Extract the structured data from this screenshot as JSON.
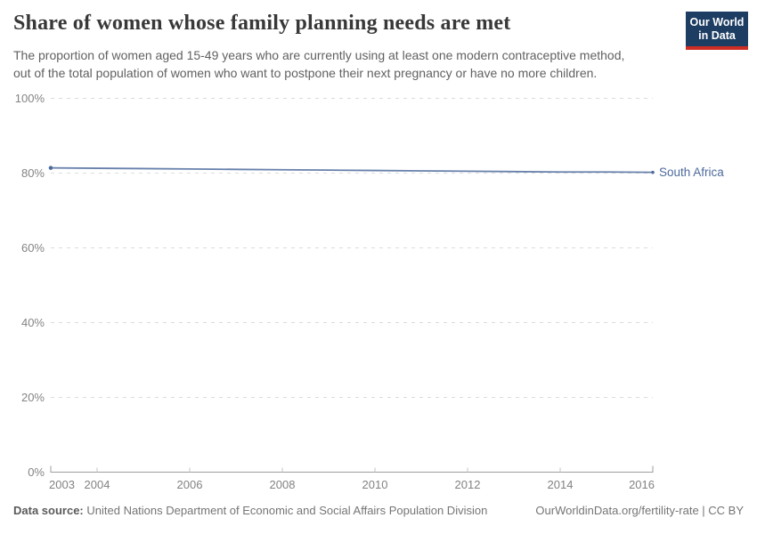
{
  "header": {
    "title": "Share of women whose family planning needs are met",
    "subtitle_lines": [
      "The proportion of women aged 15-49 years who are currently using at least one modern contraceptive method,",
      "out of the total population of women who want to postpone their next pregnancy or have no more children."
    ]
  },
  "logo": {
    "line1": "Our World",
    "line2": "in Data",
    "bg_color": "#1d3d63",
    "accent_color": "#cf2d24"
  },
  "chart_data": {
    "type": "line",
    "title": "Share of women whose family planning needs are met",
    "xlabel": "",
    "ylabel": "",
    "xlim": [
      2003,
      2016
    ],
    "ylim": [
      0,
      100
    ],
    "grid": "dashed-horizontal",
    "legend_position": "end-of-line-label",
    "yticks": [
      0,
      20,
      40,
      60,
      80,
      100
    ],
    "ytick_suffix": "%",
    "xticks": [
      2003,
      2004,
      2006,
      2008,
      2010,
      2012,
      2014,
      2016
    ],
    "x": [
      2003,
      2004,
      2005,
      2006,
      2007,
      2008,
      2009,
      2010,
      2011,
      2012,
      2013,
      2014,
      2015,
      2016
    ],
    "series": [
      {
        "name": "South Africa",
        "color": "#4c6a9c",
        "values": [
          81.4,
          81.3,
          81.2,
          81.1,
          81.0,
          80.9,
          80.8,
          80.7,
          80.6,
          80.5,
          80.4,
          80.3,
          80.3,
          80.2
        ]
      }
    ]
  },
  "footer": {
    "source_label": "Data source:",
    "source": "United Nations Department of Economic and Social Affairs Population Division",
    "link": "OurWorldinData.org/fertility-rate | CC BY"
  }
}
